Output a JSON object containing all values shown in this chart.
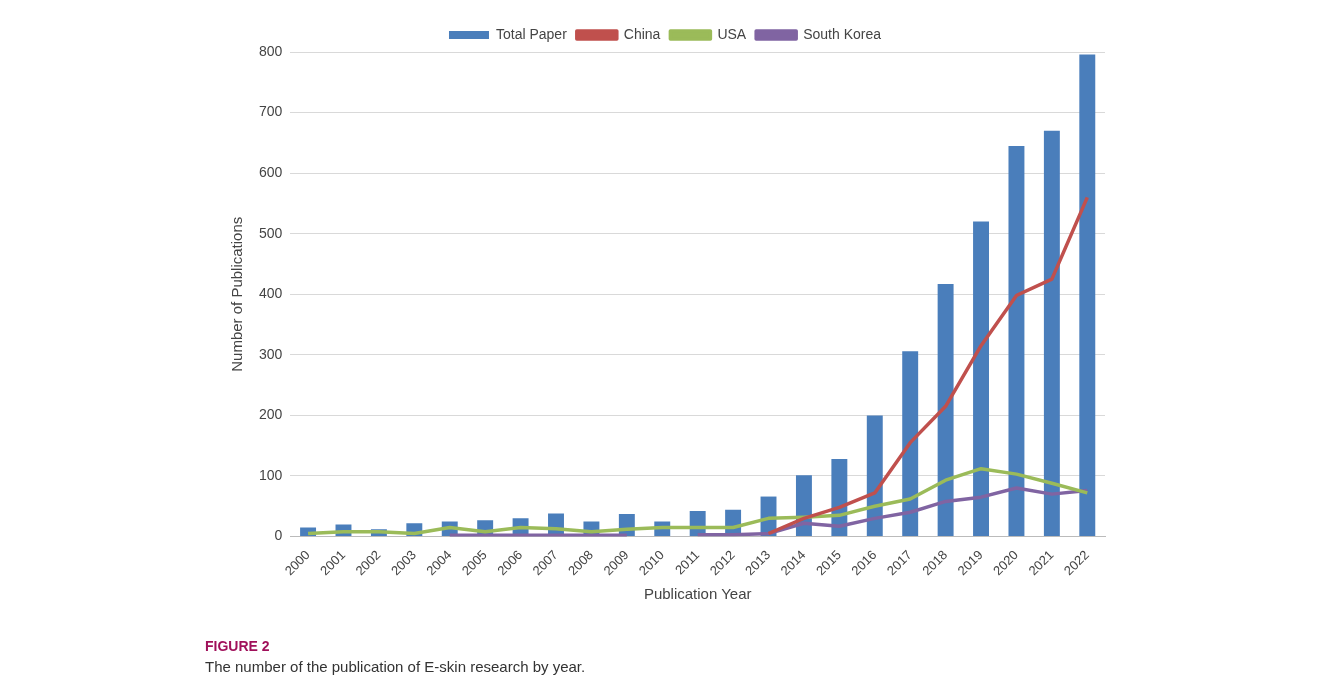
{
  "chart_data": {
    "type": "bar",
    "xlabel": "Publication Year",
    "ylabel": "Number of Publications",
    "categories": [
      "2000",
      "2001",
      "2002",
      "2003",
      "2004",
      "2005",
      "2006",
      "2007",
      "2008",
      "2009",
      "2010",
      "2011",
      "2012",
      "2013",
      "2014",
      "2015",
      "2016",
      "2017",
      "2018",
      "2019",
      "2020",
      "2021",
      "2022"
    ],
    "series": [
      {
        "name": "Total Paper",
        "color": "#4a7ebb",
        "values": [
          15,
          20,
          12,
          22,
          25,
          27,
          30,
          38,
          25,
          37,
          25,
          42,
          44,
          66,
          101,
          128,
          200,
          306,
          417,
          520,
          645,
          670,
          796
        ]
      },
      {
        "name": "China",
        "type": "line",
        "color": "#c0504d",
        "values": [
          null,
          null,
          null,
          null,
          null,
          null,
          null,
          null,
          null,
          null,
          null,
          null,
          null,
          5,
          30,
          48,
          72,
          155,
          215,
          315,
          398,
          425,
          560
        ]
      },
      {
        "name": "USA",
        "type": "line",
        "color": "#9bbb59",
        "values": [
          5,
          8,
          8,
          5,
          15,
          8,
          15,
          13,
          8,
          12,
          15,
          15,
          15,
          30,
          32,
          35,
          50,
          62,
          93,
          112,
          103,
          88,
          72
        ]
      },
      {
        "name": "South Korea",
        "type": "line",
        "color": "#8064a2",
        "values": [
          null,
          null,
          null,
          null,
          2,
          2,
          2,
          2,
          2,
          2,
          null,
          3,
          3,
          5,
          22,
          17,
          30,
          40,
          58,
          65,
          80,
          70,
          76
        ]
      }
    ],
    "ylim": [
      0,
      800
    ],
    "yticks": [
      0,
      100,
      200,
      300,
      400,
      500,
      600,
      700,
      800
    ],
    "grid": "y",
    "legend": "top",
    "marker": "none",
    "annotations": [
      "FIGURE 2",
      "The number of the publication of E-skin research by year."
    ]
  }
}
